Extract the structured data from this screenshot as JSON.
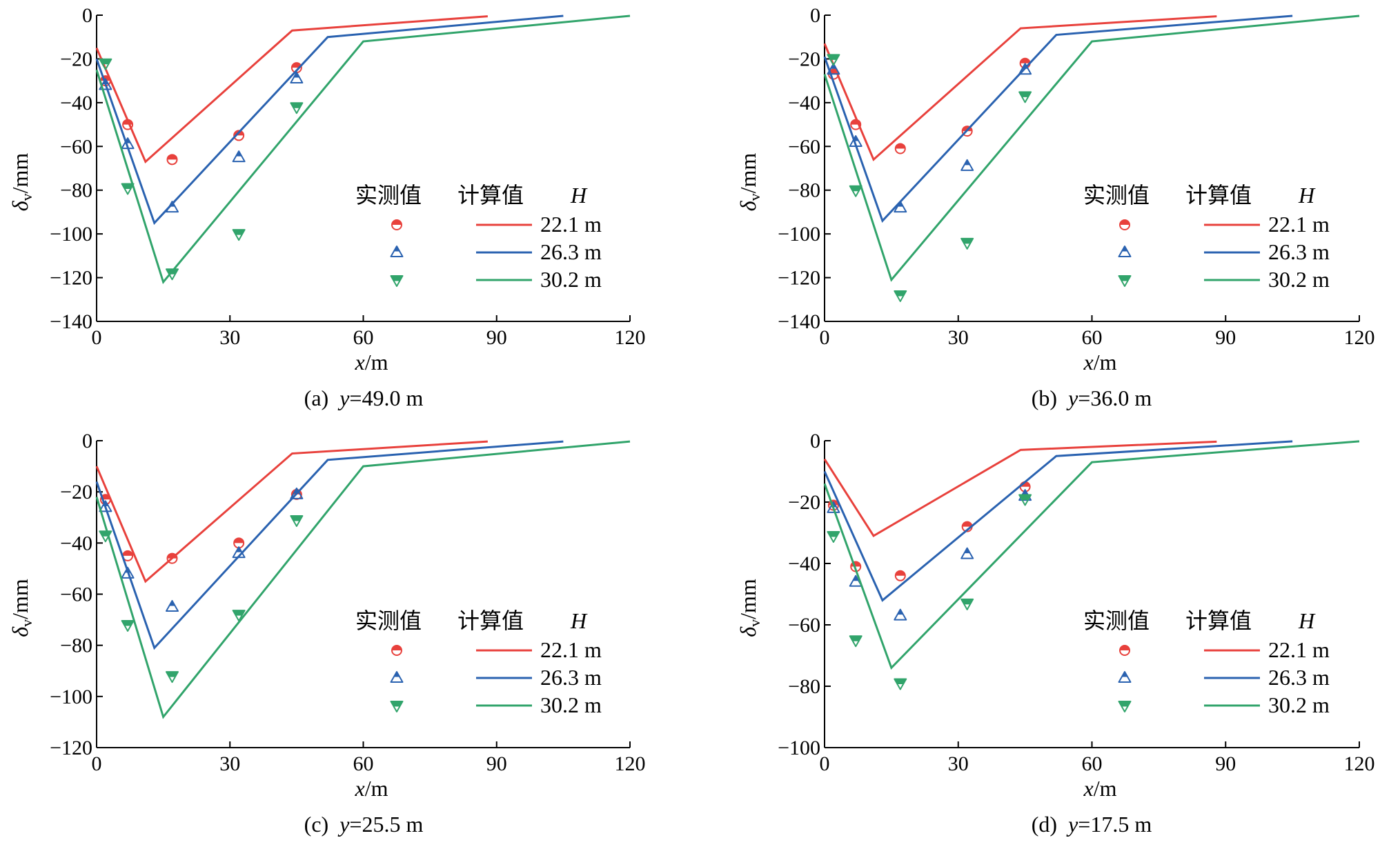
{
  "colors": {
    "red": "#e8413c",
    "blue": "#2a62b0",
    "green": "#31a46b"
  },
  "legend": {
    "measured": "实测值",
    "calculated": "计算值",
    "h_label": "H",
    "entries": [
      {
        "h": "22.1 m",
        "color": "red",
        "marker": "circle-half"
      },
      {
        "h": "26.3 m",
        "color": "blue",
        "marker": "triangle-up-half"
      },
      {
        "h": "30.2 m",
        "color": "green",
        "marker": "triangle-down-half"
      }
    ]
  },
  "chart_data": [
    {
      "type": "line",
      "panel": "a",
      "caption": "(a)",
      "caption_var": "y",
      "caption_eq": "=",
      "caption_val": "49.0 m",
      "xlabel_var": "x",
      "xlabel_unit": "/m",
      "ylabel_var": "δ",
      "ylabel_sub": "v",
      "ylabel_unit": "/mm",
      "xlim": [
        0,
        120
      ],
      "ylim": [
        -140,
        0
      ],
      "xticks": [
        0,
        30,
        60,
        90,
        120
      ],
      "yticks": [
        0,
        -20,
        -40,
        -60,
        -80,
        -100,
        -120,
        -140
      ],
      "series": [
        {
          "name": "22.1 m",
          "color": "red",
          "calc": [
            [
              0,
              -15
            ],
            [
              11,
              -67
            ],
            [
              44,
              -7
            ],
            [
              88,
              -0.5
            ]
          ],
          "measured": [
            [
              2,
              -30
            ],
            [
              7,
              -50
            ],
            [
              17,
              -66
            ],
            [
              32,
              -55
            ],
            [
              45,
              -24
            ]
          ]
        },
        {
          "name": "26.3 m",
          "color": "blue",
          "calc": [
            [
              0,
              -20
            ],
            [
              13,
              -95
            ],
            [
              52,
              -10
            ],
            [
              105,
              -0.3
            ]
          ],
          "measured": [
            [
              2,
              -32
            ],
            [
              7,
              -59
            ],
            [
              17,
              -88
            ],
            [
              32,
              -65
            ],
            [
              45,
              -29
            ]
          ]
        },
        {
          "name": "30.2 m",
          "color": "green",
          "calc": [
            [
              0,
              -25
            ],
            [
              15,
              -122
            ],
            [
              60,
              -12
            ],
            [
              120,
              -0.3
            ]
          ],
          "measured": [
            [
              2,
              -22
            ],
            [
              7,
              -79
            ],
            [
              17,
              -118
            ],
            [
              32,
              -100
            ],
            [
              45,
              -42
            ]
          ]
        }
      ]
    },
    {
      "type": "line",
      "panel": "b",
      "caption": "(b)",
      "caption_var": "y",
      "caption_eq": "=",
      "caption_val": "36.0 m",
      "xlabel_var": "x",
      "xlabel_unit": "/m",
      "ylabel_var": "δ",
      "ylabel_sub": "v",
      "ylabel_unit": "/mm",
      "xlim": [
        0,
        120
      ],
      "ylim": [
        -140,
        0
      ],
      "xticks": [
        0,
        30,
        60,
        90,
        120
      ],
      "yticks": [
        0,
        -20,
        -40,
        -60,
        -80,
        -100,
        -120,
        -140
      ],
      "series": [
        {
          "name": "22.1 m",
          "color": "red",
          "calc": [
            [
              0,
              -13
            ],
            [
              11,
              -66
            ],
            [
              44,
              -6
            ],
            [
              88,
              -0.5
            ]
          ],
          "measured": [
            [
              2,
              -27
            ],
            [
              7,
              -50
            ],
            [
              17,
              -61
            ],
            [
              32,
              -53
            ],
            [
              45,
              -22
            ]
          ]
        },
        {
          "name": "26.3 m",
          "color": "blue",
          "calc": [
            [
              0,
              -19
            ],
            [
              13,
              -94
            ],
            [
              52,
              -9
            ],
            [
              105,
              -0.3
            ]
          ],
          "measured": [
            [
              2,
              -25
            ],
            [
              7,
              -58
            ],
            [
              17,
              -88
            ],
            [
              32,
              -69
            ],
            [
              45,
              -25
            ]
          ]
        },
        {
          "name": "30.2 m",
          "color": "green",
          "calc": [
            [
              0,
              -27
            ],
            [
              15,
              -121
            ],
            [
              60,
              -12
            ],
            [
              120,
              -0.3
            ]
          ],
          "measured": [
            [
              2,
              -20
            ],
            [
              7,
              -80
            ],
            [
              17,
              -128
            ],
            [
              32,
              -104
            ],
            [
              45,
              -37
            ]
          ]
        }
      ]
    },
    {
      "type": "line",
      "panel": "c",
      "caption": "(c)",
      "caption_var": "y",
      "caption_eq": "=",
      "caption_val": "25.5 m",
      "xlabel_var": "x",
      "xlabel_unit": "/m",
      "ylabel_var": "δ",
      "ylabel_sub": "v",
      "ylabel_unit": "/mm",
      "xlim": [
        0,
        120
      ],
      "ylim": [
        -120,
        0
      ],
      "xticks": [
        0,
        30,
        60,
        90,
        120
      ],
      "yticks": [
        0,
        -20,
        -40,
        -60,
        -80,
        -100,
        -120
      ],
      "series": [
        {
          "name": "22.1 m",
          "color": "red",
          "calc": [
            [
              0,
              -10
            ],
            [
              11,
              -55
            ],
            [
              44,
              -5
            ],
            [
              88,
              -0.3
            ]
          ],
          "measured": [
            [
              2,
              -23
            ],
            [
              7,
              -45
            ],
            [
              17,
              -46
            ],
            [
              32,
              -40
            ],
            [
              45,
              -21
            ]
          ]
        },
        {
          "name": "26.3 m",
          "color": "blue",
          "calc": [
            [
              0,
              -16
            ],
            [
              13,
              -81
            ],
            [
              52,
              -7.5
            ],
            [
              105,
              -0.3
            ]
          ],
          "measured": [
            [
              2,
              -26
            ],
            [
              7,
              -52
            ],
            [
              17,
              -65
            ],
            [
              32,
              -44
            ],
            [
              45,
              -21
            ]
          ]
        },
        {
          "name": "30.2 m",
          "color": "green",
          "calc": [
            [
              0,
              -22
            ],
            [
              15,
              -108
            ],
            [
              60,
              -10
            ],
            [
              120,
              -0.3
            ]
          ],
          "measured": [
            [
              2,
              -37
            ],
            [
              7,
              -72
            ],
            [
              17,
              -92
            ],
            [
              32,
              -68
            ],
            [
              45,
              -31
            ]
          ]
        }
      ]
    },
    {
      "type": "line",
      "panel": "d",
      "caption": "(d)",
      "caption_var": "y",
      "caption_eq": "=",
      "caption_val": "17.5 m",
      "xlabel_var": "x",
      "xlabel_unit": "/m",
      "ylabel_var": "δ",
      "ylabel_sub": "v",
      "ylabel_unit": "/mm",
      "xlim": [
        0,
        120
      ],
      "ylim": [
        -100,
        0
      ],
      "xticks": [
        0,
        30,
        60,
        90,
        120
      ],
      "yticks": [
        0,
        -20,
        -40,
        -60,
        -80,
        -100
      ],
      "series": [
        {
          "name": "22.1 m",
          "color": "red",
          "calc": [
            [
              0,
              -6
            ],
            [
              11,
              -31
            ],
            [
              44,
              -3
            ],
            [
              88,
              -0.3
            ]
          ],
          "measured": [
            [
              2,
              -21
            ],
            [
              7,
              -41
            ],
            [
              17,
              -44
            ],
            [
              32,
              -28
            ],
            [
              45,
              -15
            ]
          ]
        },
        {
          "name": "26.3 m",
          "color": "blue",
          "calc": [
            [
              0,
              -10
            ],
            [
              13,
              -52
            ],
            [
              52,
              -5
            ],
            [
              105,
              -0.2
            ]
          ],
          "measured": [
            [
              2,
              -22
            ],
            [
              7,
              -46
            ],
            [
              17,
              -57
            ],
            [
              32,
              -37
            ],
            [
              45,
              -18
            ]
          ]
        },
        {
          "name": "30.2 m",
          "color": "green",
          "calc": [
            [
              0,
              -14
            ],
            [
              15,
              -74
            ],
            [
              60,
              -7
            ],
            [
              120,
              -0.2
            ]
          ],
          "measured": [
            [
              2,
              -31
            ],
            [
              7,
              -65
            ],
            [
              17,
              -79
            ],
            [
              32,
              -53
            ],
            [
              45,
              -19
            ]
          ]
        }
      ]
    }
  ]
}
